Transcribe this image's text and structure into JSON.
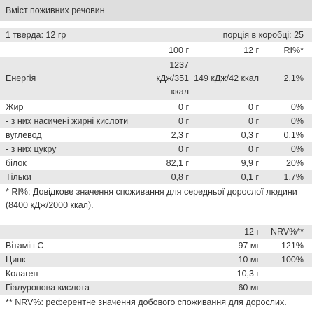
{
  "header": {
    "title": "Вміст поживних речовин"
  },
  "serving": {
    "size": "1 тверда: 12 гр",
    "per_box": "порція в коробці: 25"
  },
  "nutrition": {
    "columns": [
      "100 г",
      "12 г",
      "RI%*"
    ],
    "rows": [
      [
        "Енергія",
        "1237 кДж/351 ккал",
        "149 кДж/42 ккал",
        "2.1%"
      ],
      [
        "Жир",
        "0 г",
        "0 г",
        "0%"
      ],
      [
        "- з них насичені жирні кислоти",
        "0 г",
        "0 г",
        "0%"
      ],
      [
        "вуглевод",
        "2,3 г",
        "0,3 г",
        "0.1%"
      ],
      [
        "- з них цукру",
        "0 г",
        "0 г",
        "0%"
      ],
      [
        "білок",
        "82,1 г",
        "9,9 г",
        "20%"
      ],
      [
        "Тільки",
        "0,8 г",
        "0,1 г",
        "1.7%"
      ]
    ]
  },
  "ri_note": "* RI%: Довідкове значення споживання для середньої дорослої людини (8400 кДж/2000 ккал).",
  "supplements": {
    "columns": [
      "12 г",
      "NRV%**"
    ],
    "rows": [
      [
        "Вітамін С",
        "97 мг",
        "121%"
      ],
      [
        "Цинк",
        "10 мг",
        "100%"
      ],
      [
        "Колаген",
        "10,3 г"
      ],
      [
        "Гіалуронова кислота",
        "60 мг"
      ]
    ]
  },
  "nrv_note": "** NRV%: референтне значення добового споживання для дорослих."
}
